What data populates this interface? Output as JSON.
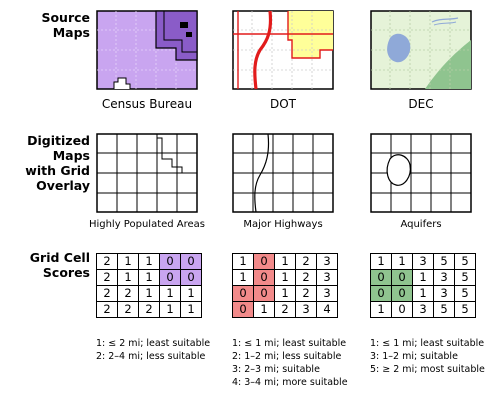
{
  "rows": [
    {
      "label_lines": [
        "Source",
        "Maps"
      ]
    },
    {
      "label_lines": [
        "Digitized",
        "Maps",
        "with Grid",
        "Overlay"
      ]
    },
    {
      "label_lines": [
        "Grid Cell",
        "Scores"
      ]
    }
  ],
  "sources": [
    "Census Bureau",
    "DOT",
    "DEC"
  ],
  "digitized": [
    "Highly Populated Areas",
    "Major Highways",
    "Aquifers"
  ],
  "score_grids": [
    {
      "rows": [
        [
          "2",
          "1",
          "1",
          "0",
          "0"
        ],
        [
          "2",
          "1",
          "1",
          "0",
          "0"
        ],
        [
          "2",
          "2",
          "1",
          "1",
          "1"
        ],
        [
          "2",
          "2",
          "2",
          "1",
          "1"
        ]
      ],
      "highlight": [
        [
          0,
          3
        ],
        [
          0,
          4
        ],
        [
          1,
          3
        ],
        [
          1,
          4
        ]
      ],
      "legend": [
        "1: ≤ 2 mi; least suitable",
        "2: 2–4 mi; less suitable"
      ]
    },
    {
      "rows": [
        [
          "1",
          "0",
          "1",
          "2",
          "3"
        ],
        [
          "1",
          "0",
          "1",
          "2",
          "3"
        ],
        [
          "0",
          "0",
          "1",
          "2",
          "3"
        ],
        [
          "0",
          "1",
          "2",
          "3",
          "4"
        ]
      ],
      "highlight": [
        [
          0,
          1
        ],
        [
          1,
          1
        ],
        [
          2,
          0
        ],
        [
          2,
          1
        ],
        [
          3,
          0
        ]
      ],
      "legend": [
        "1: ≤ 1 mi; least suitable",
        "2: 1–2 mi; less suitable",
        "3: 2–3 mi; suitable",
        "4: 3–4 mi; more suitable"
      ]
    },
    {
      "rows": [
        [
          "1",
          "1",
          "3",
          "5",
          "5"
        ],
        [
          "0",
          "0",
          "1",
          "3",
          "5"
        ],
        [
          "0",
          "0",
          "1",
          "3",
          "5"
        ],
        [
          "1",
          "0",
          "3",
          "5",
          "5"
        ]
      ],
      "highlight": [
        [
          1,
          0
        ],
        [
          1,
          1
        ],
        [
          2,
          0
        ],
        [
          2,
          1
        ]
      ],
      "legend": [
        "1: ≤ 1 mi; least suitable",
        "3: 1–2 mi; suitable",
        "5: ≥ 2 mi; most suitable"
      ]
    }
  ],
  "colors": {
    "census_fill": "#c9a5f0",
    "census_dark": "#8a5cc8",
    "dot_fill": "#ffff99",
    "dot_red": "#e21b1b",
    "dec_fill": "#e5f3d8",
    "dec_green": "#8fc48f",
    "dec_blue": "#8fa9d8"
  }
}
